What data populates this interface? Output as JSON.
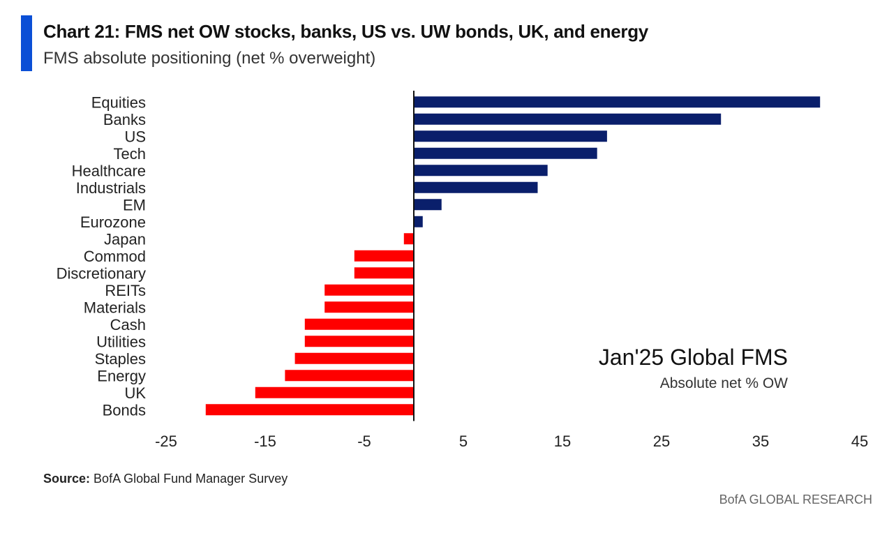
{
  "header": {
    "title": "Chart 21: FMS net OW stocks, banks, US vs. UW bonds, UK, and energy",
    "subtitle": "FMS absolute positioning (net % overweight)"
  },
  "annotation": {
    "title": "Jan'25 Global FMS",
    "subtitle": "Absolute net % OW"
  },
  "footer": {
    "source_label": "Source:",
    "source_text": "BofA Global Fund Manager Survey",
    "brand": "BofA GLOBAL RESEARCH"
  },
  "colors": {
    "positive": "#0a1f6b",
    "negative": "#ff0000",
    "accent": "#0b4fd6"
  },
  "chart_data": {
    "type": "bar",
    "orientation": "horizontal",
    "categories": [
      "Equities",
      "Banks",
      "US",
      "Tech",
      "Healthcare",
      "Industrials",
      "EM",
      "Eurozone",
      "Japan",
      "Commod",
      "Discretionary",
      "REITs",
      "Materials",
      "Cash",
      "Utilities",
      "Staples",
      "Energy",
      "UK",
      "Bonds"
    ],
    "values": [
      41,
      31,
      19.5,
      18.5,
      13.5,
      12.5,
      2.8,
      0.9,
      -1,
      -6,
      -6,
      -9,
      -9,
      -11,
      -11,
      -12,
      -13,
      -16,
      -21
    ],
    "xticks": [
      "-25",
      "-15",
      "-5",
      "5",
      "15",
      "25",
      "35",
      "45"
    ],
    "xtick_values": [
      -25,
      -15,
      -5,
      5,
      15,
      25,
      35,
      45
    ],
    "xlim": [
      -25,
      45
    ],
    "grid": false
  }
}
